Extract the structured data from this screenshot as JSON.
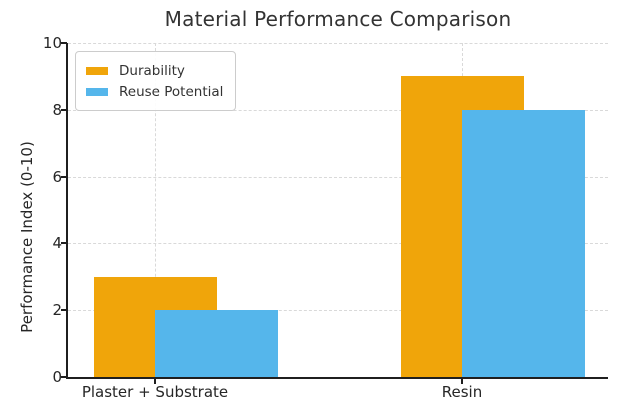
{
  "chart_data": {
    "type": "bar",
    "title": "Material Performance Comparison",
    "ylabel": "Performance Index (0-10)",
    "xlabel": "",
    "categories": [
      "Plaster + Substrate",
      "Resin"
    ],
    "series": [
      {
        "name": "Durability",
        "values": [
          3,
          9
        ],
        "color": "#F0A50A"
      },
      {
        "name": "Reuse Potential",
        "values": [
          2,
          8
        ],
        "color": "#55B6EB"
      }
    ],
    "ylim": [
      0,
      10
    ],
    "yticks": [
      0,
      2,
      4,
      6,
      8,
      10
    ],
    "grid": "dashed-both-axes",
    "legend_position": "upper-left",
    "bars_overlap": "second series shifted right by half bar width, drawn on top",
    "colors": {
      "background": "#FFFFFF",
      "grid": "#D9D9D9",
      "spine": "#1F1F1F",
      "text": "#262626",
      "title_text": "#333333",
      "legend_border": "#CCCCCC"
    }
  }
}
